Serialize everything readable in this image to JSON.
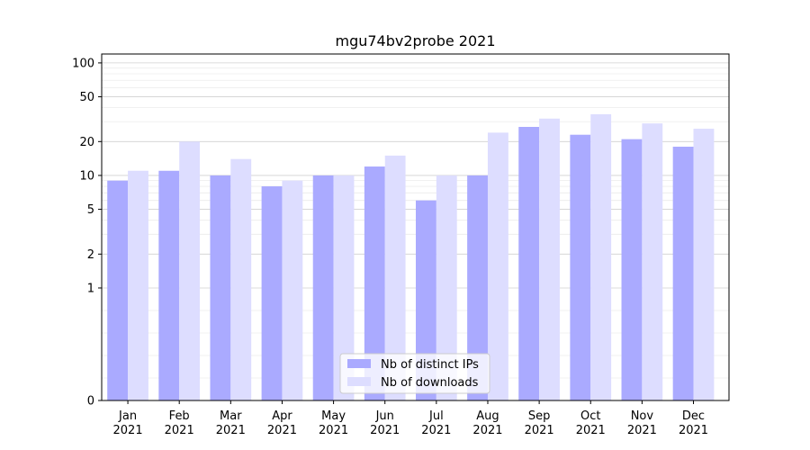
{
  "chart_data": {
    "type": "bar",
    "title": "mgu74bv2probe 2021",
    "xlabel": "",
    "ylabel": "",
    "yscale": "symlog",
    "ylim": [
      0,
      120
    ],
    "yticks": [
      0,
      1,
      2,
      5,
      10,
      20,
      50,
      100
    ],
    "categories": [
      "Jan\n2021",
      "Feb\n2021",
      "Mar\n2021",
      "Apr\n2021",
      "May\n2021",
      "Jun\n2021",
      "Jul\n2021",
      "Aug\n2021",
      "Sep\n2021",
      "Oct\n2021",
      "Nov\n2021",
      "Dec\n2021"
    ],
    "series": [
      {
        "name": "Nb of distinct IPs",
        "color": "#aaaaff",
        "values": [
          9,
          11,
          10,
          8,
          10,
          12,
          6,
          10,
          27,
          23,
          21,
          18
        ]
      },
      {
        "name": "Nb of downloads",
        "color": "#ddddff",
        "values": [
          11,
          20,
          14,
          9,
          10,
          15,
          10,
          24,
          32,
          35,
          29,
          26
        ]
      }
    ],
    "grid": true,
    "legend_position": "bottom-center"
  }
}
